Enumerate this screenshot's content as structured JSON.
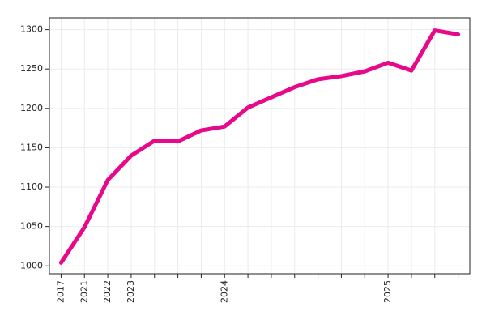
{
  "chart_data": {
    "type": "line",
    "categories": [
      "2017",
      "2021",
      "2022",
      "2023",
      null,
      null,
      null,
      "2024",
      null,
      null,
      null,
      null,
      null,
      null,
      "2025",
      null,
      null,
      null
    ],
    "series": [
      {
        "color": "#e8088a",
        "values": [
          1004,
          1049,
          1109,
          1140,
          1159,
          1158,
          1172,
          1177,
          1201,
          1214,
          1227,
          1237,
          1241,
          1247,
          1258,
          1248,
          1299,
          1294
        ]
      }
    ],
    "ylim": [
      990,
      1315
    ],
    "yticks": [
      1000,
      1050,
      1100,
      1150,
      1200,
      1250,
      1300
    ],
    "grid": true
  }
}
